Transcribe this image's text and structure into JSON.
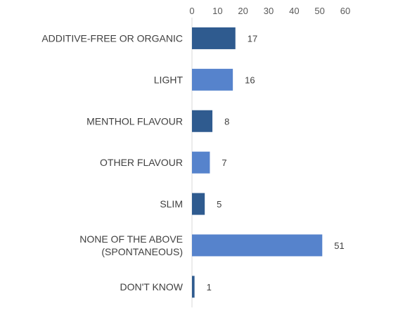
{
  "chart_data": {
    "type": "bar",
    "orientation": "horizontal",
    "categories": [
      [
        "ADDITIVE-FREE OR ORGANIC"
      ],
      [
        "LIGHT"
      ],
      [
        "MENTHOL FLAVOUR"
      ],
      [
        "OTHER FLAVOUR"
      ],
      [
        "SLIM"
      ],
      [
        "NONE OF THE ABOVE",
        "(SPONTANEOUS)"
      ],
      [
        "DON'T KNOW"
      ]
    ],
    "values": [
      17,
      16,
      8,
      7,
      5,
      51,
      1
    ],
    "bar_colors": [
      "#2f5b8f",
      "#5683cc",
      "#2f5b8f",
      "#5683cc",
      "#2f5b8f",
      "#5683cc",
      "#2f5b8f"
    ],
    "xlim": [
      0,
      60
    ],
    "xticks": [
      0,
      10,
      20,
      30,
      40,
      50,
      60
    ],
    "xaxis_position": "top",
    "grid": false,
    "title": "",
    "xlabel": "",
    "ylabel": ""
  }
}
